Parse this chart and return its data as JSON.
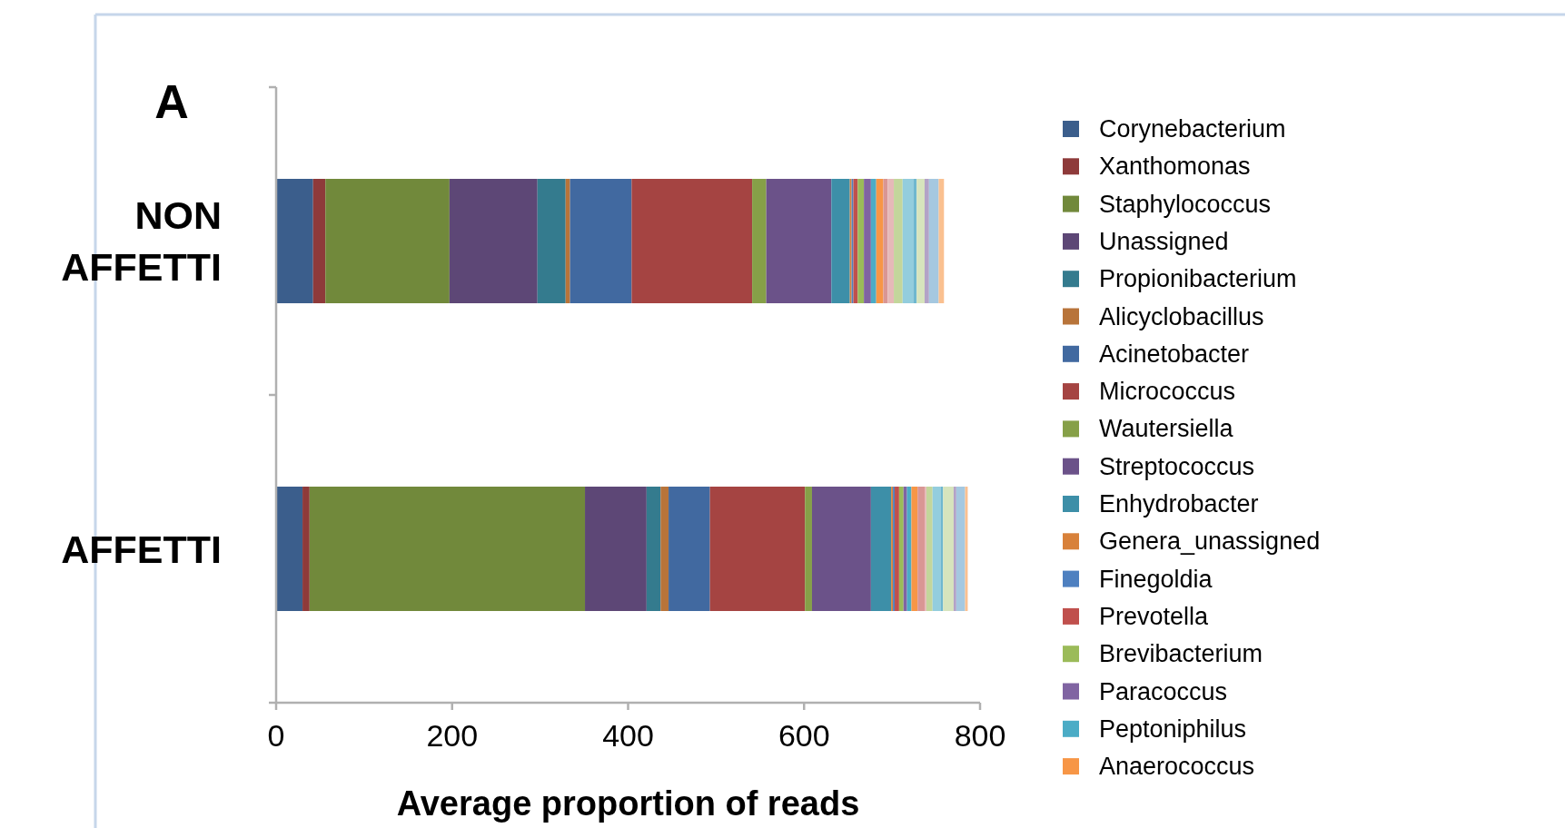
{
  "chart_data": {
    "type": "bar",
    "orientation": "horizontal",
    "stacked": true,
    "title": "A",
    "xlabel": "Average proportion of reads",
    "categories": [
      "NON AFFETTI",
      "AFFETTI"
    ],
    "xlim": [
      0,
      800
    ],
    "xticks": [
      0,
      200,
      400,
      600,
      800
    ],
    "legend": "right",
    "grid": false,
    "series": [
      {
        "name": "Corynebacterium",
        "color": "#3b5e8c",
        "values": [
          42,
          30
        ]
      },
      {
        "name": "Xanthomonas",
        "color": "#8e3a3a",
        "values": [
          14,
          8
        ]
      },
      {
        "name": "Staphylococcus",
        "color": "#71893b",
        "values": [
          141,
          313
        ]
      },
      {
        "name": "Unassigned",
        "color": "#5d4776",
        "values": [
          100,
          70
        ]
      },
      {
        "name": "Propionibacterium",
        "color": "#347b8e",
        "values": [
          32,
          16
        ]
      },
      {
        "name": "Alicyclobacillus",
        "color": "#b8743a",
        "values": [
          5,
          9
        ]
      },
      {
        "name": "Acinetobacter",
        "color": "#4169a0",
        "values": [
          70,
          47
        ]
      },
      {
        "name": "Micrococcus",
        "color": "#a54442",
        "values": [
          137,
          108
        ]
      },
      {
        "name": "Wautersiella",
        "color": "#86a048",
        "values": [
          16,
          8
        ]
      },
      {
        "name": "Streptococcus",
        "color": "#6b5289",
        "values": [
          74,
          67
        ]
      },
      {
        "name": "Enhydrobacter",
        "color": "#3d8fa8",
        "values": [
          21,
          23
        ]
      },
      {
        "name": "Genera_unassigned",
        "color": "#d8813a",
        "values": [
          2,
          2
        ]
      },
      {
        "name": "Finegoldia",
        "color": "#4e80c0",
        "values": [
          2,
          2
        ]
      },
      {
        "name": "Prevotella",
        "color": "#c0504d",
        "values": [
          5,
          5
        ]
      },
      {
        "name": "Brevibacterium",
        "color": "#9bbb59",
        "values": [
          7,
          5
        ]
      },
      {
        "name": "Paracoccus",
        "color": "#8064a2",
        "values": [
          8,
          4
        ]
      },
      {
        "name": "Peptoniphilus",
        "color": "#4bacc6",
        "values": [
          6,
          5
        ]
      },
      {
        "name": "Anaerococcus",
        "color": "#f79646",
        "values": [
          8,
          7
        ]
      },
      {
        "color": "#d99694",
        "values": [
          5,
          8
        ]
      },
      {
        "color": "#e6b9b8",
        "values": [
          7,
          2
        ]
      },
      {
        "color": "#c3d69b",
        "values": [
          10,
          7
        ]
      },
      {
        "color": "#93cddd",
        "values": [
          12,
          9
        ]
      },
      {
        "color": "#6fb7cf",
        "values": [
          4,
          3
        ]
      },
      {
        "color": "#d7e4bd",
        "values": [
          9,
          12
        ]
      },
      {
        "color": "#b3a2c7",
        "values": [
          5,
          3
        ]
      },
      {
        "color": "#a5c8e0",
        "values": [
          11,
          10
        ]
      },
      {
        "color": "#fac090",
        "values": [
          6,
          3
        ]
      }
    ]
  }
}
